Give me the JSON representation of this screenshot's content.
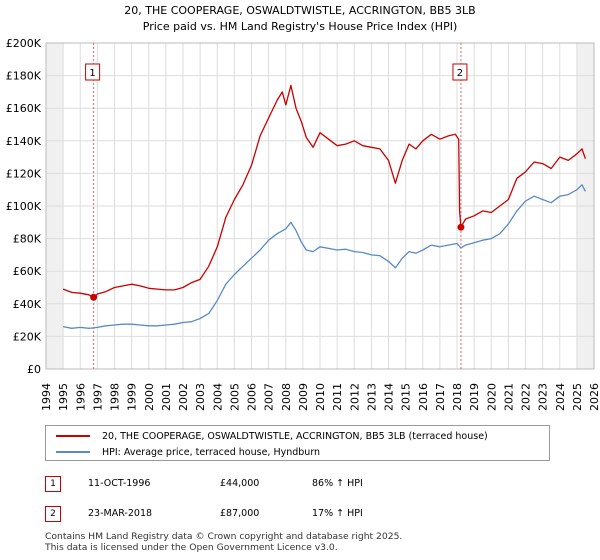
{
  "chart_data": {
    "type": "line",
    "title_line1": "20, THE COOPERAGE, OSWALDTWISTLE, ACCRINGTON, BB5 3LB",
    "title_line2": "Price paid vs. HM Land Registry's House Price Index (HPI)",
    "xlabel": "",
    "ylabel": "",
    "xlim": [
      1994,
      2026
    ],
    "ylim": [
      0,
      200000
    ],
    "x_ticks": [
      "1994",
      "1995",
      "1996",
      "1997",
      "1998",
      "1999",
      "2000",
      "2001",
      "2002",
      "2003",
      "2004",
      "2005",
      "2006",
      "2007",
      "2008",
      "2009",
      "2010",
      "2011",
      "2012",
      "2013",
      "2014",
      "2015",
      "2016",
      "2017",
      "2018",
      "2019",
      "2020",
      "2021",
      "2022",
      "2023",
      "2024",
      "2025",
      "2026"
    ],
    "y_ticks": [
      {
        "value": 0,
        "label": "£0"
      },
      {
        "value": 20000,
        "label": "£20K"
      },
      {
        "value": 40000,
        "label": "£40K"
      },
      {
        "value": 60000,
        "label": "£60K"
      },
      {
        "value": 80000,
        "label": "£80K"
      },
      {
        "value": 100000,
        "label": "£100K"
      },
      {
        "value": 120000,
        "label": "£120K"
      },
      {
        "value": 140000,
        "label": "£140K"
      },
      {
        "value": 160000,
        "label": "£160K"
      },
      {
        "value": 180000,
        "label": "£180K"
      },
      {
        "value": 200000,
        "label": "£200K"
      }
    ],
    "series": [
      {
        "name": "20, THE COOPERAGE, OSWALDTWISTLE, ACCRINGTON, BB5 3LB (terraced house)",
        "color": "#cc0000",
        "points": [
          [
            1995.0,
            49000
          ],
          [
            1995.5,
            47000
          ],
          [
            1996.0,
            46500
          ],
          [
            1996.5,
            45500
          ],
          [
            1996.78,
            44000
          ],
          [
            1997.0,
            46000
          ],
          [
            1997.5,
            47500
          ],
          [
            1998.0,
            50000
          ],
          [
            1998.5,
            51000
          ],
          [
            1999.0,
            52000
          ],
          [
            1999.5,
            51000
          ],
          [
            2000.0,
            49500
          ],
          [
            2000.5,
            49000
          ],
          [
            2001.0,
            48500
          ],
          [
            2001.5,
            48500
          ],
          [
            2002.0,
            50000
          ],
          [
            2002.5,
            53000
          ],
          [
            2003.0,
            55000
          ],
          [
            2003.5,
            63000
          ],
          [
            2004.0,
            75000
          ],
          [
            2004.5,
            93000
          ],
          [
            2005.0,
            104000
          ],
          [
            2005.5,
            113000
          ],
          [
            2006.0,
            125000
          ],
          [
            2006.5,
            143000
          ],
          [
            2007.0,
            154000
          ],
          [
            2007.5,
            165000
          ],
          [
            2007.8,
            170000
          ],
          [
            2008.0,
            162000
          ],
          [
            2008.3,
            174000
          ],
          [
            2008.6,
            160000
          ],
          [
            2008.9,
            152000
          ],
          [
            2009.2,
            142000
          ],
          [
            2009.6,
            136000
          ],
          [
            2010.0,
            145000
          ],
          [
            2010.5,
            141000
          ],
          [
            2011.0,
            137000
          ],
          [
            2011.5,
            138000
          ],
          [
            2012.0,
            140000
          ],
          [
            2012.5,
            137000
          ],
          [
            2013.0,
            136000
          ],
          [
            2013.5,
            135000
          ],
          [
            2014.0,
            128000
          ],
          [
            2014.4,
            114000
          ],
          [
            2014.8,
            128000
          ],
          [
            2015.2,
            138000
          ],
          [
            2015.6,
            135000
          ],
          [
            2016.0,
            140000
          ],
          [
            2016.5,
            144000
          ],
          [
            2017.0,
            141000
          ],
          [
            2017.5,
            143000
          ],
          [
            2017.9,
            144000
          ],
          [
            2018.1,
            141000
          ],
          [
            2018.15,
            97000
          ],
          [
            2018.23,
            87000
          ],
          [
            2018.5,
            92000
          ],
          [
            2019.0,
            94000
          ],
          [
            2019.5,
            97000
          ],
          [
            2020.0,
            96000
          ],
          [
            2020.5,
            100000
          ],
          [
            2021.0,
            104000
          ],
          [
            2021.5,
            117000
          ],
          [
            2022.0,
            121000
          ],
          [
            2022.5,
            127000
          ],
          [
            2023.0,
            126000
          ],
          [
            2023.5,
            123000
          ],
          [
            2024.0,
            130000
          ],
          [
            2024.5,
            128000
          ],
          [
            2025.0,
            132000
          ],
          [
            2025.3,
            135000
          ],
          [
            2025.5,
            129000
          ]
        ]
      },
      {
        "name": "HPI: Average price, terraced house, Hyndburn",
        "color": "#5a8ac6",
        "points": [
          [
            1995.0,
            26000
          ],
          [
            1995.5,
            25000
          ],
          [
            1996.0,
            25500
          ],
          [
            1996.5,
            25000
          ],
          [
            1996.78,
            25200
          ],
          [
            1997.0,
            25500
          ],
          [
            1997.5,
            26500
          ],
          [
            1998.0,
            27000
          ],
          [
            1998.5,
            27500
          ],
          [
            1999.0,
            27500
          ],
          [
            1999.5,
            27000
          ],
          [
            2000.0,
            26500
          ],
          [
            2000.5,
            26500
          ],
          [
            2001.0,
            27000
          ],
          [
            2001.5,
            27500
          ],
          [
            2002.0,
            28500
          ],
          [
            2002.5,
            29000
          ],
          [
            2003.0,
            31000
          ],
          [
            2003.5,
            34000
          ],
          [
            2004.0,
            42000
          ],
          [
            2004.5,
            52000
          ],
          [
            2005.0,
            58000
          ],
          [
            2005.5,
            63000
          ],
          [
            2006.0,
            68000
          ],
          [
            2006.5,
            73000
          ],
          [
            2007.0,
            79000
          ],
          [
            2007.5,
            83000
          ],
          [
            2008.0,
            86000
          ],
          [
            2008.3,
            90000
          ],
          [
            2008.6,
            85000
          ],
          [
            2008.9,
            78000
          ],
          [
            2009.2,
            73000
          ],
          [
            2009.6,
            72000
          ],
          [
            2010.0,
            75000
          ],
          [
            2010.5,
            74000
          ],
          [
            2011.0,
            73000
          ],
          [
            2011.5,
            73500
          ],
          [
            2012.0,
            72000
          ],
          [
            2012.5,
            71500
          ],
          [
            2013.0,
            70000
          ],
          [
            2013.5,
            69500
          ],
          [
            2014.0,
            66000
          ],
          [
            2014.4,
            62000
          ],
          [
            2014.8,
            68000
          ],
          [
            2015.2,
            72000
          ],
          [
            2015.6,
            71000
          ],
          [
            2016.0,
            73000
          ],
          [
            2016.5,
            76000
          ],
          [
            2017.0,
            75000
          ],
          [
            2017.5,
            76000
          ],
          [
            2018.0,
            77000
          ],
          [
            2018.23,
            74300
          ],
          [
            2018.5,
            76000
          ],
          [
            2019.0,
            77500
          ],
          [
            2019.5,
            79000
          ],
          [
            2020.0,
            80000
          ],
          [
            2020.5,
            83000
          ],
          [
            2021.0,
            89000
          ],
          [
            2021.5,
            97000
          ],
          [
            2022.0,
            103000
          ],
          [
            2022.5,
            106000
          ],
          [
            2023.0,
            104000
          ],
          [
            2023.5,
            102000
          ],
          [
            2024.0,
            106000
          ],
          [
            2024.5,
            107000
          ],
          [
            2025.0,
            110000
          ],
          [
            2025.3,
            113000
          ],
          [
            2025.5,
            109000
          ]
        ]
      }
    ],
    "sale_markers": [
      {
        "label": "1",
        "x": 1996.78,
        "y": 44000
      },
      {
        "label": "2",
        "x": 2018.23,
        "y": 87000
      }
    ],
    "shaded_ranges": [
      [
        1994,
        1995
      ],
      [
        2025.0,
        2026
      ]
    ]
  },
  "legend": {
    "items": [
      {
        "label": "20, THE COOPERAGE, OSWALDTWISTLE, ACCRINGTON, BB5 3LB (terraced house)",
        "color": "#cc0000"
      },
      {
        "label": "HPI: Average price, terraced house, Hyndburn",
        "color": "#5a8ac6"
      }
    ]
  },
  "sales_table": [
    {
      "num": "1",
      "date": "11-OCT-1996",
      "price": "£44,000",
      "hpi": "86% ↑ HPI"
    },
    {
      "num": "2",
      "date": "23-MAR-2018",
      "price": "£87,000",
      "hpi": "17% ↑ HPI"
    }
  ],
  "footer": {
    "line1": "Contains HM Land Registry data © Crown copyright and database right 2025.",
    "line2": "This data is licensed under the Open Government Licence v3.0."
  }
}
